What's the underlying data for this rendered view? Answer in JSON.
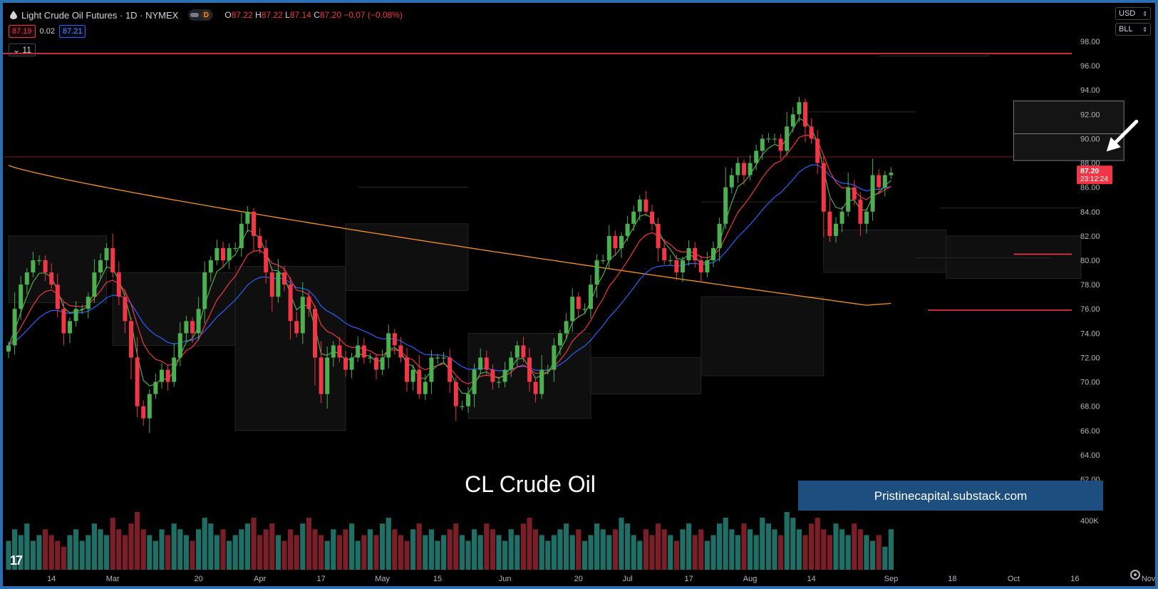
{
  "header": {
    "title": "Light Crude Oil Futures · 1D · NYMEX",
    "interval_badge": "D",
    "ohlc": {
      "o_label": "O",
      "o": "87.22",
      "h_label": "H",
      "h": "87.22",
      "l_label": "L",
      "l": "87.14",
      "c_label": "C",
      "c": "87.20",
      "change": "−0.07 (−0.08%)"
    },
    "bid": "87.19",
    "spread": "0.02",
    "ask": "87.21",
    "indicator_count": "11"
  },
  "controls": {
    "currency": "USD",
    "unit": "BLL"
  },
  "overlay": {
    "title": "CL Crude Oil",
    "banner": "Pristinecapital.substack.com"
  },
  "price_tag": {
    "price": "87.20",
    "countdown": "23:12:24"
  },
  "colors": {
    "up": "#26a69a",
    "up_bright": "#4caf50",
    "down": "#f23645",
    "ema_fast": "#4caf50",
    "ema_mid": "#f23645",
    "ema_slow": "#2962ff",
    "ma_long": "#f7931a",
    "accent": "#f23645",
    "banner_bg": "#1c4f80"
  },
  "chart_data": {
    "type": "candlestick",
    "y_axis": {
      "min": 62,
      "max": 98,
      "ticks": [
        "98.00",
        "96.00",
        "94.00",
        "92.00",
        "90.00",
        "88.00",
        "86.00",
        "84.00",
        "82.00",
        "80.00",
        "78.00",
        "76.00",
        "74.00",
        "72.00",
        "70.00",
        "68.00",
        "66.00",
        "64.00",
        "62.00"
      ]
    },
    "volume_tick": "400K",
    "x_ticks": [
      {
        "label": "14",
        "i": 7
      },
      {
        "label": "Mar",
        "i": 17
      },
      {
        "label": "20",
        "i": 31
      },
      {
        "label": "Apr",
        "i": 41
      },
      {
        "label": "17",
        "i": 51
      },
      {
        "label": "May",
        "i": 61
      },
      {
        "label": "15",
        "i": 70
      },
      {
        "label": "Jun",
        "i": 81
      },
      {
        "label": "20",
        "i": 93
      },
      {
        "label": "Jul",
        "i": 101
      },
      {
        "label": "17",
        "i": 111
      },
      {
        "label": "Aug",
        "i": 121
      },
      {
        "label": "14",
        "i": 131
      },
      {
        "label": "Sep",
        "i": 144
      },
      {
        "label": "18",
        "i": 154
      },
      {
        "label": "Oct",
        "i": 164
      },
      {
        "label": "16",
        "i": 174
      },
      {
        "label": "Nov",
        "i": 186
      }
    ],
    "closes": [
      73,
      76,
      78,
      79,
      80,
      80,
      79,
      78,
      76,
      74,
      75,
      76,
      76,
      77,
      79,
      80,
      81,
      79,
      77,
      75,
      72,
      68,
      67,
      69,
      70,
      71,
      70,
      72,
      74,
      75,
      74,
      76,
      79,
      80,
      81,
      80,
      81,
      81,
      83,
      84,
      82,
      81,
      79,
      77,
      79,
      78,
      75,
      74,
      77,
      76,
      72,
      69,
      72,
      73,
      72,
      71,
      72,
      73,
      72,
      72,
      71,
      72,
      74,
      73,
      72,
      70,
      71,
      69,
      70,
      72,
      72,
      72,
      70,
      68,
      68,
      69,
      71,
      72,
      71,
      70,
      70,
      71,
      72,
      73,
      72,
      70,
      69,
      71,
      71,
      73,
      74,
      75,
      77,
      76,
      76,
      78,
      80,
      80,
      82,
      81,
      82,
      83,
      84,
      85,
      84,
      83,
      81,
      80,
      80,
      79,
      80,
      81,
      80,
      79,
      80,
      81,
      83,
      86,
      87,
      88,
      87,
      88,
      89,
      90,
      90,
      90,
      89,
      91,
      92,
      93,
      91,
      90,
      88,
      84,
      82,
      83,
      84,
      86,
      85,
      83,
      84,
      87,
      86,
      87,
      87.2
    ],
    "volumes": [
      0.5,
      0.7,
      0.6,
      0.8,
      0.5,
      0.6,
      0.7,
      0.6,
      0.5,
      0.4,
      0.6,
      0.7,
      0.5,
      0.6,
      0.8,
      0.7,
      0.6,
      0.9,
      0.7,
      0.6,
      0.8,
      1.0,
      0.7,
      0.6,
      0.5,
      0.7,
      0.6,
      0.8,
      0.7,
      0.6,
      0.5,
      0.7,
      0.9,
      0.8,
      0.6,
      0.7,
      0.5,
      0.6,
      0.7,
      0.8,
      0.9,
      0.6,
      0.7,
      0.8,
      0.6,
      0.5,
      0.7,
      0.6,
      0.8,
      0.9,
      0.7,
      0.6,
      0.5,
      0.7,
      0.6,
      0.7,
      0.8,
      0.5,
      0.6,
      0.7,
      0.6,
      0.8,
      0.9,
      0.7,
      0.6,
      0.5,
      0.7,
      0.8,
      0.6,
      0.7,
      0.5,
      0.6,
      0.7,
      0.8,
      0.6,
      0.5,
      0.7,
      0.6,
      0.8,
      0.7,
      0.6,
      0.5,
      0.7,
      0.6,
      0.8,
      0.9,
      0.7,
      0.6,
      0.5,
      0.6,
      0.7,
      0.8,
      0.6,
      0.7,
      0.5,
      0.6,
      0.8,
      0.7,
      0.6,
      0.7,
      0.9,
      0.8,
      0.6,
      0.5,
      0.7,
      0.6,
      0.8,
      0.7,
      0.6,
      0.5,
      0.7,
      0.8,
      0.6,
      0.7,
      0.5,
      0.6,
      0.8,
      0.9,
      0.7,
      0.6,
      0.8,
      0.7,
      0.6,
      0.9,
      0.8,
      0.7,
      0.6,
      1.0,
      0.9,
      0.7,
      0.6,
      0.8,
      0.9,
      0.7,
      0.6,
      0.8,
      0.7,
      0.6,
      0.8,
      0.7,
      0.6,
      0.5,
      0.6,
      0.4,
      0.7
    ],
    "horizontal_levels": [
      {
        "y": 97,
        "style": "solid",
        "color": "#f23645"
      },
      {
        "y": 88.5,
        "style": "thin",
        "color": "#f23645"
      },
      {
        "y": 80.5,
        "from_i": 164,
        "style": "solid",
        "color": "#f23645"
      },
      {
        "y": 75.9,
        "from_i": 150,
        "style": "solid",
        "color": "#f23645"
      }
    ],
    "zones": [
      {
        "i0": 164,
        "i1": 182,
        "y0": 88.2,
        "y1": 93.1,
        "mid": 90.4
      }
    ],
    "annotation": {
      "type": "arrow",
      "target_i": 178,
      "target_y": 88.6
    },
    "grid": false,
    "legend": "none"
  }
}
